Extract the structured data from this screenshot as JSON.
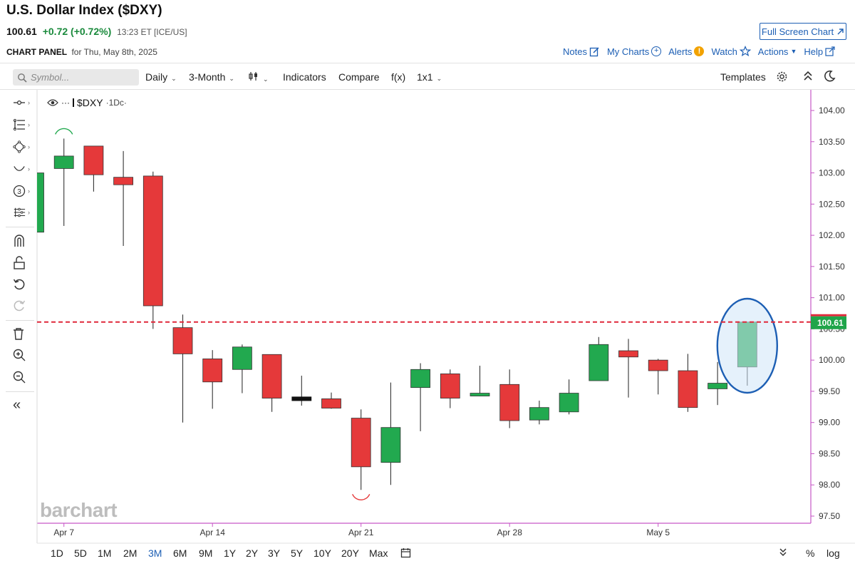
{
  "header": {
    "title": "U.S. Dollar Index ($DXY)",
    "last": "100.61",
    "change": "+0.72 (+0.72%)",
    "time_exchange": "13:23 ET [ICE/US]",
    "fullscreen_label": "Full Screen Chart",
    "panel_label": "CHART PANEL",
    "panel_date": "for Thu, May 8th, 2025"
  },
  "top_links": {
    "notes": "Notes",
    "my_charts": "My Charts",
    "alerts": "Alerts",
    "watch": "Watch",
    "actions": "Actions",
    "help": "Help"
  },
  "toolbar": {
    "symbol_placeholder": "Symbol...",
    "interval": "Daily",
    "period": "3-Month",
    "indicators": "Indicators",
    "compare": "Compare",
    "fx": "f(x)",
    "layout": "1x1",
    "templates": "Templates"
  },
  "legend": {
    "symbol": "$DXY",
    "interval": "·1Dc·"
  },
  "watermark": "barchart",
  "range_buttons": [
    "1D",
    "5D",
    "1M",
    "2M",
    "3M",
    "6M",
    "9M",
    "1Y",
    "2Y",
    "3Y",
    "5Y",
    "10Y",
    "20Y",
    "Max"
  ],
  "active_range": "3M",
  "bottom_right": {
    "percent": "%",
    "log": "log"
  },
  "colors": {
    "up": "#22a94f",
    "down": "#e5393a",
    "neutral": "#111111",
    "last_price_line": "#e0283a",
    "accent": "#1d5fb4",
    "highlight_fill": "#cfe6f8",
    "highlight_stroke": "#1d5fb4",
    "axis_line": "#c657c6"
  },
  "chart_data": {
    "type": "candlestick",
    "title": "",
    "ylim": [
      97.35,
      104.25
    ],
    "y_ticks": [
      "104.00",
      "103.50",
      "103.00",
      "102.50",
      "102.00",
      "101.50",
      "101.00",
      "100.50",
      "100.00",
      "99.50",
      "99.00",
      "98.50",
      "98.00",
      "97.50"
    ],
    "x_ticks": [
      "Apr 7",
      "Apr 14",
      "Apr 21",
      "Apr 28",
      "May 5"
    ],
    "last_price": 100.61,
    "last_price_label": "100.61",
    "candles": [
      {
        "o": 102.05,
        "h": 103.05,
        "l": 102.0,
        "c": 103.0
      },
      {
        "o": 103.07,
        "h": 103.55,
        "l": 102.15,
        "c": 103.27
      },
      {
        "o": 103.43,
        "h": 103.43,
        "l": 102.7,
        "c": 102.97
      },
      {
        "o": 102.93,
        "h": 103.35,
        "l": 101.83,
        "c": 102.81
      },
      {
        "o": 102.95,
        "h": 103.02,
        "l": 100.5,
        "c": 100.87
      },
      {
        "o": 100.52,
        "h": 100.73,
        "l": 99.0,
        "c": 100.1
      },
      {
        "o": 100.02,
        "h": 100.16,
        "l": 99.22,
        "c": 99.65
      },
      {
        "o": 99.85,
        "h": 100.25,
        "l": 99.47,
        "c": 100.21
      },
      {
        "o": 100.09,
        "h": 100.09,
        "l": 99.17,
        "c": 99.39
      },
      {
        "o": 99.35,
        "h": 99.75,
        "l": 99.27,
        "c": 99.41
      },
      {
        "o": 99.38,
        "h": 99.48,
        "l": 99.22,
        "c": 99.23
      },
      {
        "o": 99.07,
        "h": 99.21,
        "l": 97.92,
        "c": 98.29
      },
      {
        "o": 98.36,
        "h": 99.64,
        "l": 98.0,
        "c": 98.92
      },
      {
        "o": 99.56,
        "h": 99.95,
        "l": 98.86,
        "c": 99.85
      },
      {
        "o": 99.78,
        "h": 99.85,
        "l": 99.23,
        "c": 99.39
      },
      {
        "o": 99.46,
        "h": 99.91,
        "l": 99.42,
        "c": 99.47
      },
      {
        "o": 99.61,
        "h": 99.85,
        "l": 98.91,
        "c": 99.03
      },
      {
        "o": 99.04,
        "h": 99.35,
        "l": 98.97,
        "c": 99.24
      },
      {
        "o": 99.17,
        "h": 99.69,
        "l": 99.13,
        "c": 99.47
      },
      {
        "o": 99.67,
        "h": 100.37,
        "l": 99.67,
        "c": 100.25
      },
      {
        "o": 100.15,
        "h": 100.34,
        "l": 99.4,
        "c": 100.05
      },
      {
        "o": 100.0,
        "h": 100.02,
        "l": 99.45,
        "c": 99.83
      },
      {
        "o": 99.83,
        "h": 100.1,
        "l": 99.17,
        "c": 99.24
      },
      {
        "o": 99.54,
        "h": 99.97,
        "l": 99.28,
        "c": 99.63
      },
      {
        "o": 99.89,
        "h": 100.61,
        "l": 99.59,
        "c": 100.61
      }
    ]
  }
}
